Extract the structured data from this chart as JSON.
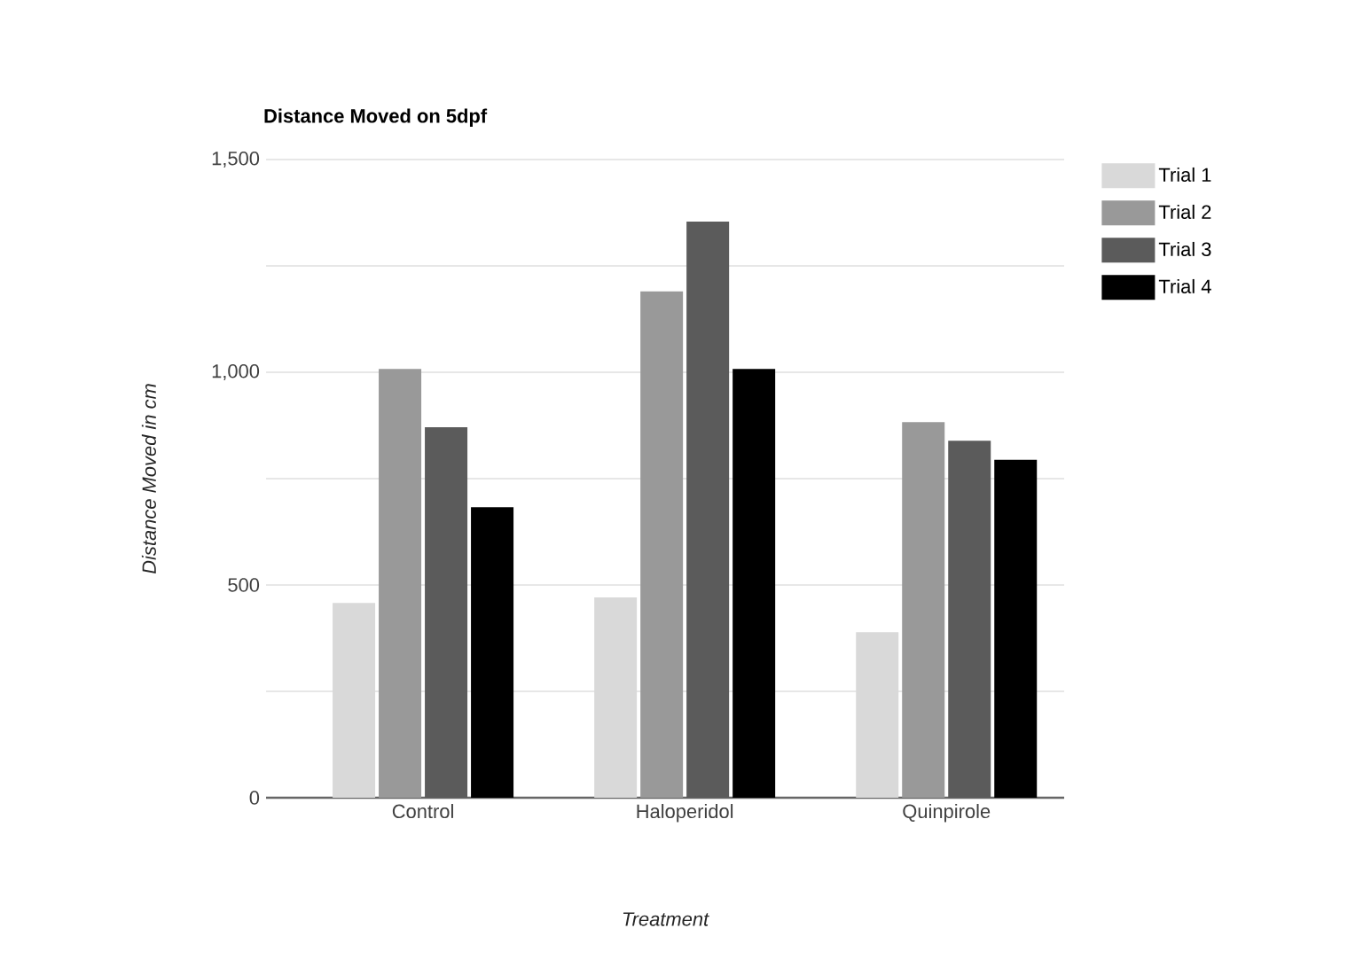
{
  "chart_data": {
    "type": "bar",
    "title": "Distance Moved on 5dpf",
    "xlabel": "Treatment",
    "ylabel": "Distance Moved in cm",
    "categories": [
      "Control",
      "Haloperidol",
      "Quinpirole"
    ],
    "series": [
      {
        "name": "Trial 1",
        "color": "#d9d9d9",
        "values": [
          458,
          471,
          389
        ]
      },
      {
        "name": "Trial 2",
        "color": "#999999",
        "values": [
          1008,
          1190,
          883
        ]
      },
      {
        "name": "Trial 3",
        "color": "#5b5b5b",
        "values": [
          871,
          1354,
          839
        ]
      },
      {
        "name": "Trial 4",
        "color": "#000000",
        "values": [
          683,
          1008,
          794
        ]
      }
    ],
    "ylim": [
      0,
      1500
    ],
    "yticks": [
      0,
      {
        "value": 250,
        "label": null
      },
      500,
      {
        "value": 750,
        "label": null
      },
      {
        "value": 1000,
        "label": "1,000"
      },
      {
        "value": 1250,
        "label": null
      },
      {
        "value": 1500,
        "label": "1,500"
      }
    ],
    "grid": "y",
    "legend": "right"
  }
}
